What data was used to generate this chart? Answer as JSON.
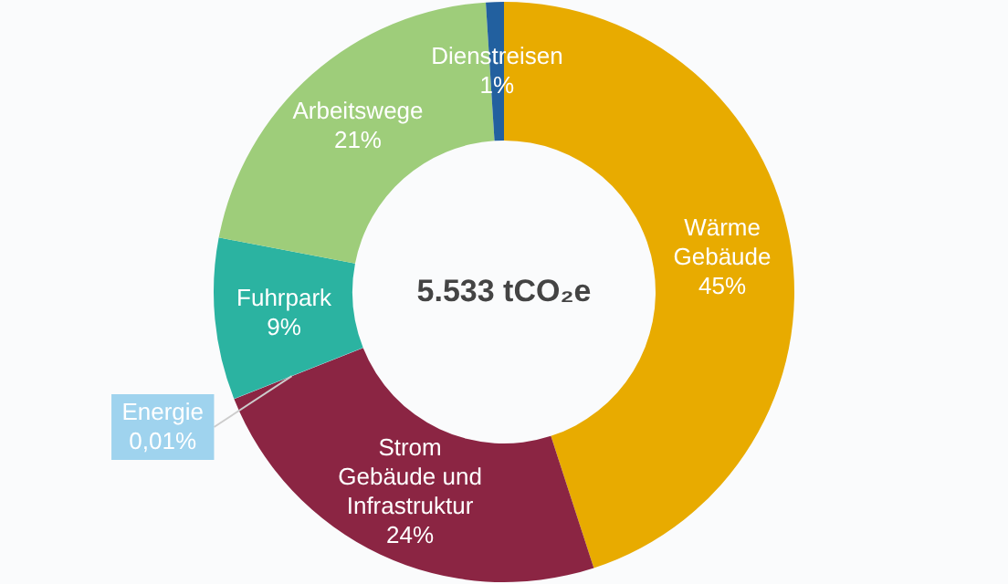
{
  "chart_data": {
    "type": "donut",
    "categories": [
      "Wärme Gebäude",
      "Strom Gebäude und Infrastruktur",
      "Energie",
      "Fuhrpark",
      "Arbeitswege",
      "Dienstreisen"
    ],
    "values": [
      45,
      24,
      0.01,
      9,
      21,
      1
    ],
    "value_labels": [
      "45%",
      "24%",
      "0,01%",
      "9%",
      "21%",
      "1%"
    ],
    "colors": [
      "#e8ab00",
      "#8b2543",
      "#9fd3ee",
      "#2bb3a1",
      "#9ecd7a",
      "#22609f"
    ],
    "annotations": [
      "5.533 tCO₂e"
    ]
  }
}
